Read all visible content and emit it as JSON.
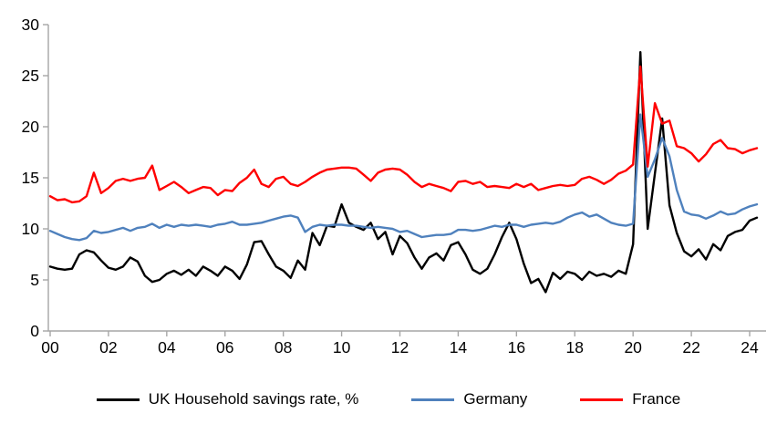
{
  "chart_data": {
    "type": "line",
    "title": "",
    "x_axis": {
      "tick_labels": [
        "00",
        "02",
        "04",
        "06",
        "08",
        "10",
        "12",
        "14",
        "16",
        "18",
        "20",
        "22",
        "24"
      ],
      "unit": "year (quarterly data)",
      "range": [
        "2000Q1",
        "2024Q2"
      ]
    },
    "y_axis": {
      "ticks": [
        0,
        5,
        10,
        15,
        20,
        25,
        30
      ],
      "min": 0,
      "max": 30
    },
    "grid": false,
    "legend_position": "bottom",
    "axis_color": "#a6a6a6",
    "text_color": "#000000",
    "series": [
      {
        "name": "UK Household savings rate, %",
        "color": "#000000",
        "values": [
          6.3,
          6.1,
          6.0,
          6.1,
          7.5,
          7.9,
          7.7,
          6.9,
          6.2,
          6.0,
          6.3,
          7.2,
          6.8,
          5.4,
          4.8,
          5.0,
          5.6,
          5.9,
          5.5,
          6.0,
          5.4,
          6.3,
          5.9,
          5.4,
          6.3,
          5.9,
          5.1,
          6.5,
          8.7,
          8.8,
          7.5,
          6.3,
          5.9,
          5.2,
          6.9,
          6.0,
          9.6,
          8.4,
          10.3,
          10.2,
          12.4,
          10.6,
          10.2,
          9.9,
          10.6,
          9.0,
          9.7,
          7.5,
          9.3,
          8.6,
          7.2,
          6.1,
          7.2,
          7.6,
          6.9,
          8.4,
          8.7,
          7.5,
          6.0,
          5.6,
          6.1,
          7.5,
          9.2,
          10.6,
          9.0,
          6.6,
          4.7,
          5.1,
          3.8,
          5.7,
          5.1,
          5.8,
          5.6,
          5.0,
          5.8,
          5.4,
          5.6,
          5.3,
          5.9,
          5.6,
          8.5,
          27.3,
          10.0,
          15.4,
          20.8,
          12.3,
          9.6,
          7.8,
          7.3,
          8.0,
          7.0,
          8.5,
          7.9,
          9.3,
          9.7,
          9.9,
          10.8,
          11.1
        ]
      },
      {
        "name": "Germany",
        "color": "#4f81bd",
        "values": [
          9.8,
          9.5,
          9.2,
          9.0,
          8.9,
          9.1,
          9.8,
          9.6,
          9.7,
          9.9,
          10.1,
          9.8,
          10.1,
          10.2,
          10.5,
          10.1,
          10.4,
          10.2,
          10.4,
          10.3,
          10.4,
          10.3,
          10.2,
          10.4,
          10.5,
          10.7,
          10.4,
          10.4,
          10.5,
          10.6,
          10.8,
          11.0,
          11.2,
          11.3,
          11.1,
          9.7,
          10.2,
          10.4,
          10.3,
          10.4,
          10.4,
          10.3,
          10.3,
          10.2,
          10.1,
          10.2,
          10.1,
          10.0,
          9.7,
          9.8,
          9.5,
          9.2,
          9.3,
          9.4,
          9.4,
          9.5,
          9.9,
          9.9,
          9.8,
          9.9,
          10.1,
          10.3,
          10.2,
          10.4,
          10.4,
          10.2,
          10.4,
          10.5,
          10.6,
          10.5,
          10.7,
          11.1,
          11.4,
          11.6,
          11.2,
          11.4,
          11.0,
          10.6,
          10.4,
          10.3,
          10.5,
          21.2,
          15.1,
          16.8,
          18.9,
          17.1,
          13.8,
          11.7,
          11.4,
          11.3,
          11.0,
          11.3,
          11.7,
          11.4,
          11.5,
          11.9,
          12.2,
          12.4
        ]
      },
      {
        "name": "France",
        "color": "#ff0000",
        "values": [
          13.2,
          12.8,
          12.9,
          12.6,
          12.7,
          13.2,
          15.5,
          13.5,
          14.0,
          14.7,
          14.9,
          14.7,
          14.9,
          15.0,
          16.2,
          13.8,
          14.2,
          14.6,
          14.1,
          13.5,
          13.8,
          14.1,
          14.0,
          13.3,
          13.8,
          13.7,
          14.5,
          15.0,
          15.8,
          14.4,
          14.1,
          14.9,
          15.1,
          14.4,
          14.2,
          14.6,
          15.1,
          15.5,
          15.8,
          15.9,
          16.0,
          16.0,
          15.9,
          15.3,
          14.7,
          15.5,
          15.8,
          15.9,
          15.8,
          15.3,
          14.6,
          14.1,
          14.4,
          14.2,
          14.0,
          13.7,
          14.6,
          14.7,
          14.4,
          14.6,
          14.1,
          14.2,
          14.1,
          14.0,
          14.4,
          14.1,
          14.4,
          13.8,
          14.0,
          14.2,
          14.3,
          14.2,
          14.3,
          14.9,
          15.1,
          14.8,
          14.4,
          14.8,
          15.4,
          15.7,
          16.3,
          25.9,
          16.1,
          22.3,
          20.3,
          20.6,
          18.1,
          17.9,
          17.4,
          16.6,
          17.3,
          18.3,
          18.7,
          17.9,
          17.8,
          17.4,
          17.7,
          17.9
        ]
      }
    ]
  }
}
